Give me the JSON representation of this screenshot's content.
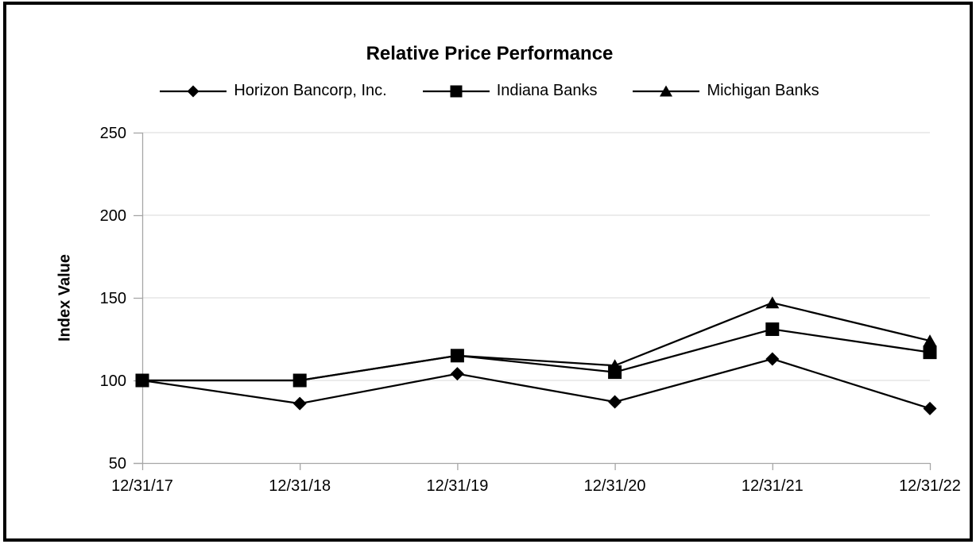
{
  "chart_data": {
    "type": "line",
    "title": "Relative Price Performance",
    "ylabel": "Index Value",
    "xlabel": "",
    "categories": [
      "12/31/17",
      "12/31/18",
      "12/31/19",
      "12/31/20",
      "12/31/21",
      "12/31/22"
    ],
    "series": [
      {
        "name": "Horizon Bancorp, Inc.",
        "marker": "diamond",
        "values": [
          100,
          86,
          104,
          87,
          113,
          83
        ]
      },
      {
        "name": "Indiana Banks",
        "marker": "square",
        "values": [
          100,
          100,
          115,
          105,
          131,
          117
        ]
      },
      {
        "name": "Michigan Banks",
        "marker": "triangle",
        "values": [
          100,
          100,
          115,
          109,
          147,
          124
        ]
      }
    ],
    "y_ticks": [
      250,
      200,
      150,
      100,
      50
    ],
    "ylim": [
      50,
      250
    ],
    "grid": "horizontal-light",
    "legend_position": "top",
    "colors": {
      "series": "#000000",
      "gridline": "#d9d9d9",
      "axis": "#a6a6a6",
      "text": "#000000",
      "background": "#ffffff",
      "frame_border": "#000000"
    }
  }
}
